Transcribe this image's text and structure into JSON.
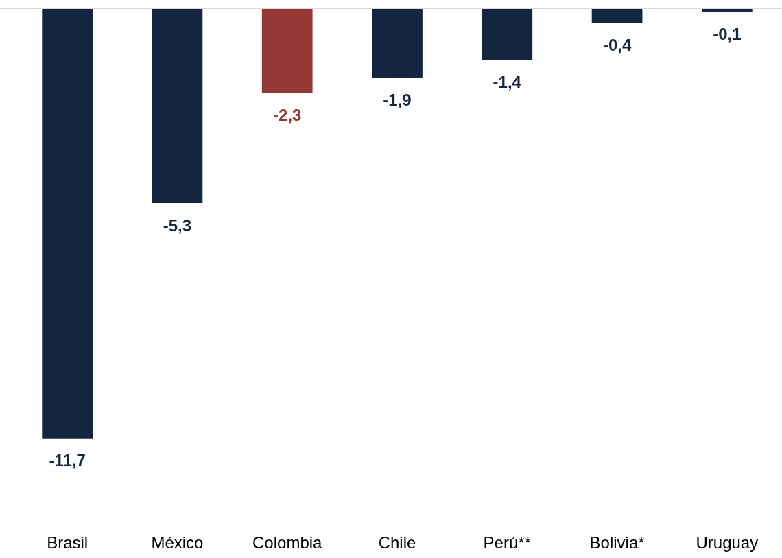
{
  "chart_data": {
    "type": "bar",
    "categories": [
      "Brasil",
      "México",
      "Colombia",
      "Chile",
      "Perú**",
      "Bolivia*",
      "Uruguay"
    ],
    "values": [
      -11.7,
      -5.3,
      -2.3,
      -1.9,
      -1.4,
      -0.4,
      -0.1
    ],
    "colors": [
      "#14263f",
      "#14263f",
      "#953735",
      "#14263f",
      "#14263f",
      "#14263f",
      "#14263f"
    ],
    "value_labels": [
      "-11,7",
      "-5,3",
      "-2,3",
      "-1,9",
      "-1,4",
      "-0,4",
      "-0,1"
    ],
    "grid": false,
    "legend": false
  }
}
